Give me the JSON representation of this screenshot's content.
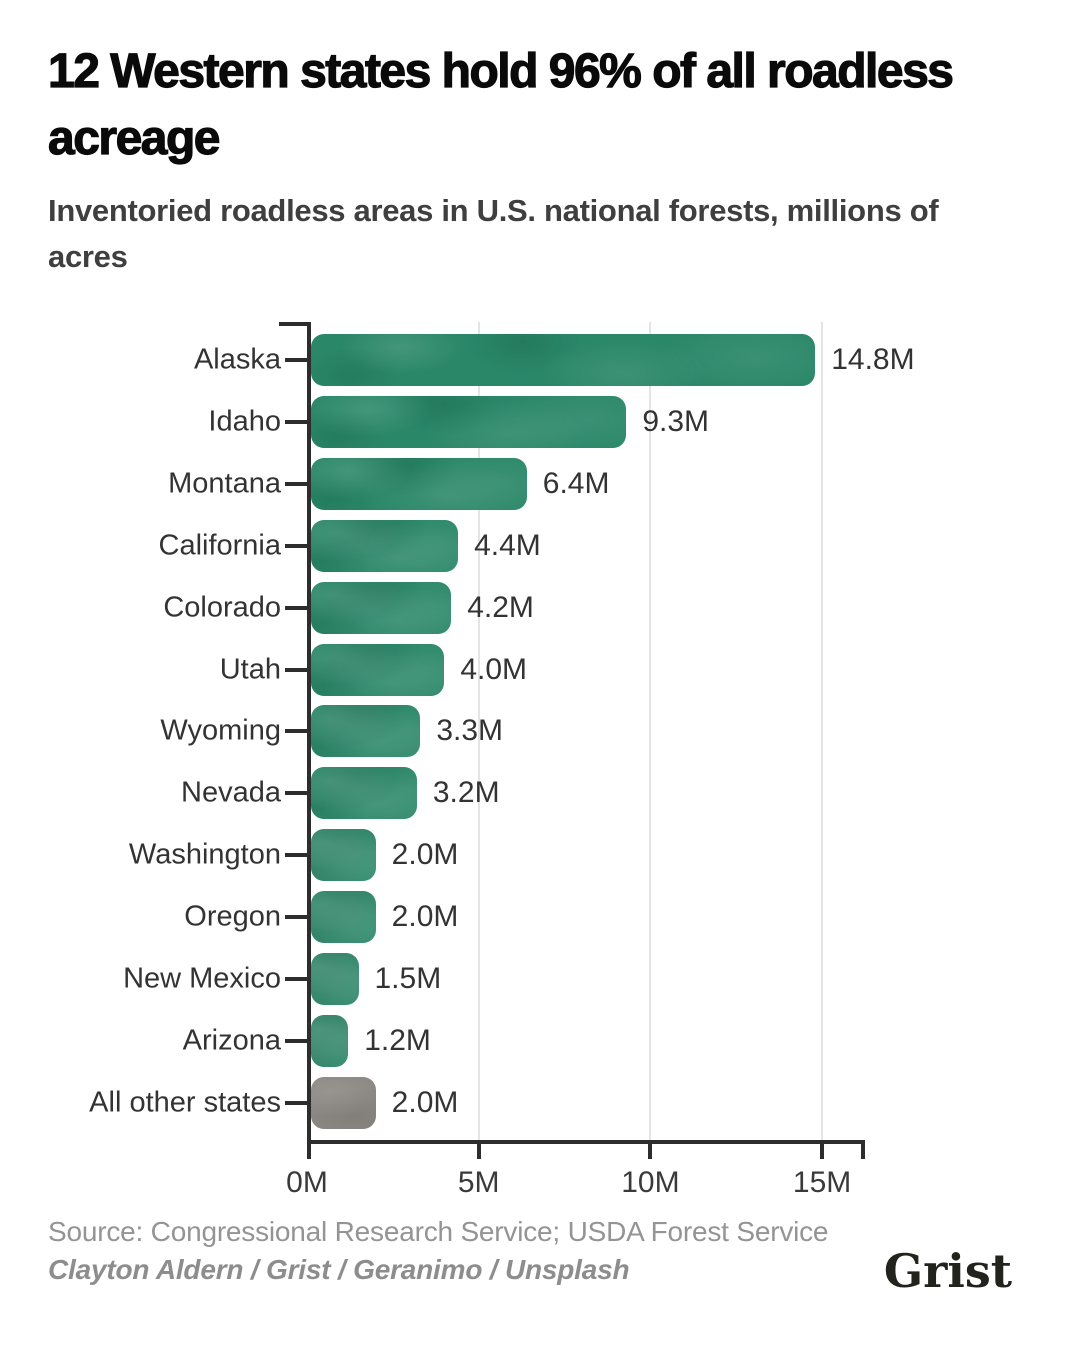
{
  "header": {
    "title": "12 Western states hold 96% of all roadless acreage",
    "subtitle": "Inventoried roadless areas in U.S. national forests, millions of acres"
  },
  "chart_data": {
    "type": "bar",
    "orientation": "horizontal",
    "title": "12 Western states hold 96% of all roadless acreage",
    "subtitle": "Inventoried roadless areas in U.S. national forests, millions of acres",
    "unit": "millions of acres",
    "categories": [
      "Alaska",
      "Idaho",
      "Montana",
      "California",
      "Colorado",
      "Utah",
      "Wyoming",
      "Nevada",
      "Washington",
      "Oregon",
      "New Mexico",
      "Arizona",
      "All other states"
    ],
    "values": [
      14.8,
      9.3,
      6.4,
      4.4,
      4.2,
      4.0,
      3.3,
      3.2,
      2.0,
      2.0,
      1.5,
      1.2,
      2.0
    ],
    "value_labels": [
      "14.8M",
      "9.3M",
      "6.4M",
      "4.4M",
      "4.2M",
      "4.0M",
      "3.3M",
      "3.2M",
      "2.0M",
      "2.0M",
      "1.5M",
      "1.2M",
      "2.0M"
    ],
    "x_tick_labels": [
      "0M",
      "5M",
      "10M",
      "15M"
    ],
    "x_tick_values": [
      0,
      5,
      10,
      15
    ],
    "xlim": [
      0,
      16.25
    ],
    "grid": "vertical",
    "legend": "none",
    "other_category": "All other states",
    "colors": {
      "bar": "#2a8768",
      "other_bar": "#8c8984",
      "axis": "#2d2d2d",
      "gridline": "#e4e4e4",
      "label": "#333333"
    }
  },
  "footer": {
    "source": "Source: Congressional Research Service; USDA Forest Service",
    "credit": "Clayton Aldern / Grist / Geranimo / Unsplash",
    "logo": "Grist"
  }
}
